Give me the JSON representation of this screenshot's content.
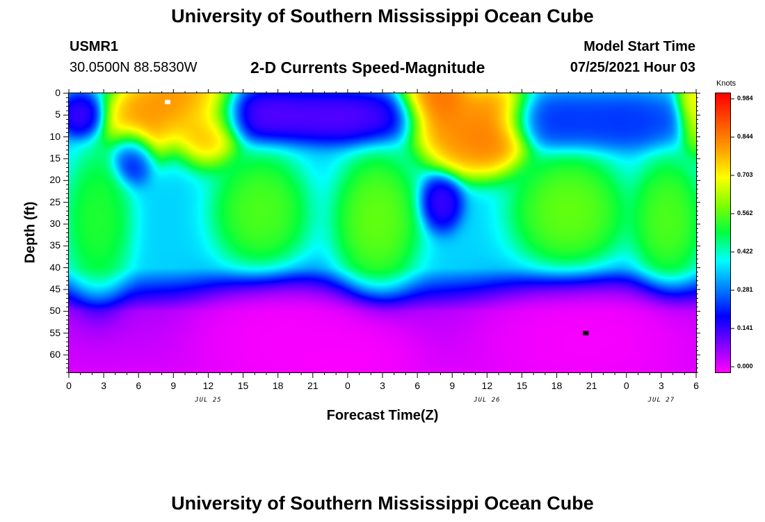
{
  "header": {
    "title": "University of Southern Mississippi Ocean Cube",
    "station": "USMR1",
    "coordinates": "30.0500N  88.5830W",
    "subtitle": "2-D Currents Speed-Magnitude",
    "model_label": "Model Start Time",
    "model_time": "07/25/2021 Hour 03"
  },
  "footer": {
    "title": "University of Southern Mississippi Ocean Cube"
  },
  "chart_data": {
    "type": "heatmap",
    "title": "2-D Currents Speed-Magnitude",
    "xlabel": "Forecast Time(Z)",
    "ylabel": "Depth (ft)",
    "x_tick_labels": [
      "0",
      "3",
      "6",
      "9",
      "12",
      "15",
      "18",
      "21",
      "0",
      "3",
      "6",
      "9",
      "12",
      "15",
      "18",
      "21",
      "0",
      "3",
      "6"
    ],
    "x_date_labels": [
      {
        "label": "JUL 25",
        "at_hour": 12
      },
      {
        "label": "JUL 26",
        "at_hour": 36
      },
      {
        "label": "JUL 27",
        "at_hour": 51
      }
    ],
    "x_range_hours": [
      0,
      54
    ],
    "y_tick_labels": [
      "0",
      "5",
      "10",
      "15",
      "20",
      "25",
      "30",
      "35",
      "40",
      "45",
      "50",
      "55",
      "60"
    ],
    "y_range_ft": [
      0,
      64
    ],
    "y_inverted": true,
    "colorbar": {
      "unit": "Knots",
      "tick_labels": [
        "0.984",
        "0.844",
        "0.703",
        "0.562",
        "0.422",
        "0.281",
        "0.141",
        "0.000"
      ],
      "range": [
        0.0,
        0.984
      ],
      "colors": [
        "#ff00ff",
        "#8000ff",
        "#0000ff",
        "#0080ff",
        "#00ffff",
        "#00ff40",
        "#80ff00",
        "#ffff00",
        "#ffa000",
        "#ff5000",
        "#ff0000"
      ]
    },
    "marked_points": [
      {
        "name": "max",
        "hour": 8.5,
        "depth_ft": 2,
        "color": "#ffffff"
      },
      {
        "name": "min",
        "hour": 44.5,
        "depth_ft": 55,
        "color": "#000000"
      }
    ],
    "features": [
      {
        "hour": 9,
        "depth_ft": 2,
        "value": 0.87,
        "sx": 2.2,
        "sd": 4.5
      },
      {
        "hour": 6,
        "depth_ft": 7,
        "value": 0.84,
        "sx": 1.4,
        "sd": 4.5
      },
      {
        "hour": 12,
        "depth_ft": 7,
        "value": 0.84,
        "sx": 1.4,
        "sd": 4.5
      },
      {
        "hour": 32,
        "depth_ft": 2,
        "value": 0.92,
        "sx": 1.6,
        "sd": 5
      },
      {
        "hour": 36.5,
        "depth_ft": 7,
        "value": 0.9,
        "sx": 1.6,
        "sd": 5
      },
      {
        "hour": 34.5,
        "depth_ft": 11,
        "value": 0.86,
        "sx": 2,
        "sd": 4
      },
      {
        "hour": 54,
        "depth_ft": 3,
        "value": 0.74,
        "sx": 0.8,
        "sd": 5
      },
      {
        "hour": 1,
        "depth_ft": 5,
        "value": 0.12,
        "sx": 0.9,
        "sd": 2.5
      },
      {
        "hour": 5.5,
        "depth_ft": 14,
        "value": 0.12,
        "sx": 0.9,
        "sd": 3.2
      },
      {
        "hour": 17,
        "depth_ft": 5,
        "value": 0.1,
        "sx": 3,
        "sd": 3
      },
      {
        "hour": 24,
        "depth_ft": 5.5,
        "value": 0.1,
        "sx": 3,
        "sd": 3
      },
      {
        "hour": 32,
        "depth_ft": 25,
        "value": 0.12,
        "sx": 0.9,
        "sd": 3.2
      },
      {
        "hour": 42,
        "depth_ft": 6.5,
        "value": 0.22,
        "sx": 2.6,
        "sd": 3
      },
      {
        "hour": 48,
        "depth_ft": 6.5,
        "value": 0.22,
        "sx": 2.6,
        "sd": 3
      },
      {
        "hour": 2.5,
        "depth_ft": 29,
        "value": 0.54,
        "sx": 1.4,
        "sd": 8
      },
      {
        "hour": 16.5,
        "depth_ft": 27,
        "value": 0.58,
        "sx": 2,
        "sd": 6.5
      },
      {
        "hour": 26.5,
        "depth_ft": 29,
        "value": 0.6,
        "sx": 1.8,
        "sd": 7.5
      },
      {
        "hour": 43,
        "depth_ft": 27,
        "value": 0.6,
        "sx": 2.4,
        "sd": 6.5
      },
      {
        "hour": 51.5,
        "depth_ft": 29,
        "value": 0.58,
        "sx": 1.5,
        "sd": 7
      },
      {
        "hour": 18,
        "depth_ft": 55,
        "value": 0.0,
        "sx": 3.5,
        "sd": 6
      },
      {
        "hour": 44.5,
        "depth_ft": 55,
        "value": 0.0,
        "sx": 4.5,
        "sd": 6
      },
      {
        "hour": 24,
        "depth_ft": 60,
        "value": 0.0,
        "sx": 3,
        "sd": 5
      }
    ]
  }
}
